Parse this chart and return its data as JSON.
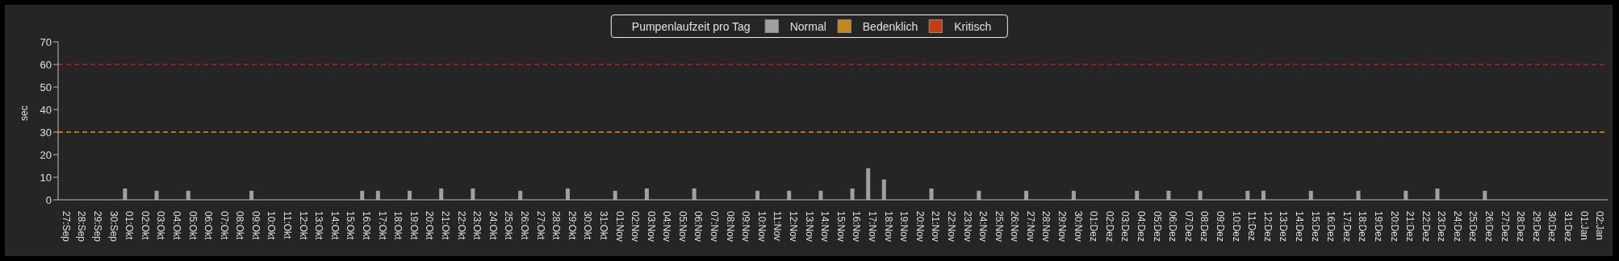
{
  "chart_data": {
    "type": "bar",
    "legend_title": "Pumpenlaufzeit pro Tag",
    "ylabel": "sec",
    "categories": [
      "27:Sep",
      "28:Sep",
      "29:Sep",
      "30:Sep",
      "01:Okt",
      "02:Okt",
      "03:Okt",
      "04:Okt",
      "05:Okt",
      "06:Okt",
      "07:Okt",
      "08:Okt",
      "09:Okt",
      "10:Okt",
      "11:Okt",
      "12:Okt",
      "13:Okt",
      "14:Okt",
      "15:Okt",
      "16:Okt",
      "17:Okt",
      "18:Okt",
      "19:Okt",
      "20:Okt",
      "21:Okt",
      "22:Okt",
      "23:Okt",
      "24:Okt",
      "25:Okt",
      "26:Okt",
      "27:Okt",
      "28:Okt",
      "29:Okt",
      "30:Okt",
      "31:Okt",
      "01:Nov",
      "02:Nov",
      "03:Nov",
      "04:Nov",
      "05:Nov",
      "06:Nov",
      "07:Nov",
      "08:Nov",
      "09:Nov",
      "10:Nov",
      "11:Nov",
      "12:Nov",
      "13:Nov",
      "14:Nov",
      "15:Nov",
      "16:Nov",
      "17:Nov",
      "18:Nov",
      "19:Nov",
      "20:Nov",
      "21:Nov",
      "22:Nov",
      "23:Nov",
      "24:Nov",
      "25:Nov",
      "26:Nov",
      "27:Nov",
      "28:Nov",
      "29:Nov",
      "30:Nov",
      "01:Dez",
      "02:Dez",
      "03:Dez",
      "04:Dez",
      "05:Dez",
      "06:Dez",
      "07:Dez",
      "08:Dez",
      "09:Dez",
      "10:Dez",
      "11:Dez",
      "12:Dez",
      "13:Dez",
      "14:Dez",
      "15:Dez",
      "16:Dez",
      "17:Dez",
      "18:Dez",
      "19:Dez",
      "20:Dez",
      "21:Dez",
      "22:Dez",
      "23:Dez",
      "24:Dez",
      "25:Dez",
      "26:Dez",
      "27:Dez",
      "28:Dez",
      "29:Dez",
      "30:Dez",
      "31:Dez",
      "01:Jan",
      "02:Jan"
    ],
    "series": [
      {
        "name": "Normal",
        "color": "#a0a0a0",
        "values": [
          0,
          0,
          0,
          0,
          5,
          0,
          4,
          0,
          4,
          0,
          0,
          0,
          4,
          0,
          0,
          0,
          0,
          0,
          0,
          4,
          4,
          0,
          4,
          0,
          5,
          0,
          5,
          0,
          0,
          4,
          0,
          0,
          5,
          0,
          0,
          4,
          0,
          5,
          0,
          0,
          5,
          0,
          0,
          0,
          4,
          0,
          4,
          0,
          4,
          0,
          5,
          14,
          9,
          0,
          0,
          5,
          0,
          0,
          4,
          0,
          0,
          4,
          0,
          0,
          4,
          0,
          0,
          0,
          4,
          0,
          4,
          0,
          4,
          0,
          0,
          4,
          4,
          0,
          0,
          4,
          0,
          0,
          4,
          0,
          0,
          4,
          0,
          5,
          0,
          0,
          4,
          0,
          0,
          0,
          0,
          0,
          0,
          0
        ]
      },
      {
        "name": "Bedenklich",
        "color": "#c8861a",
        "values": [
          null,
          null,
          null,
          null,
          null,
          null,
          null,
          null,
          null,
          null,
          null,
          null,
          null,
          null,
          null,
          null,
          null,
          null,
          null,
          null,
          null,
          null,
          null,
          null,
          null,
          null,
          null,
          null,
          null,
          null,
          null,
          null,
          null,
          null,
          null,
          null,
          null,
          null,
          null,
          null,
          null,
          null,
          null,
          null,
          null,
          null,
          null,
          null,
          null,
          null,
          null,
          null,
          null,
          null,
          null,
          null,
          null,
          null,
          null,
          null,
          null,
          null,
          null,
          null,
          null,
          null,
          null,
          null,
          null,
          null,
          null,
          null,
          null,
          null,
          null,
          null,
          null,
          null,
          null,
          null,
          null,
          null,
          null,
          null,
          null,
          null,
          null,
          null,
          null,
          null,
          null,
          null,
          null,
          null,
          null,
          null,
          null,
          null
        ]
      },
      {
        "name": "Kritisch",
        "color": "#c83c14",
        "values": [
          null,
          null,
          null,
          null,
          null,
          null,
          null,
          null,
          null,
          null,
          null,
          null,
          null,
          null,
          null,
          null,
          null,
          null,
          null,
          null,
          null,
          null,
          null,
          null,
          null,
          null,
          null,
          null,
          null,
          null,
          null,
          null,
          null,
          null,
          null,
          null,
          null,
          null,
          null,
          null,
          null,
          null,
          null,
          null,
          null,
          null,
          null,
          null,
          null,
          null,
          null,
          null,
          null,
          null,
          null,
          null,
          null,
          null,
          null,
          null,
          null,
          null,
          null,
          null,
          null,
          null,
          null,
          null,
          null,
          null,
          null,
          null,
          null,
          null,
          null,
          null,
          null,
          null,
          null,
          null,
          null,
          null,
          null,
          null,
          null,
          null,
          null,
          null,
          null,
          null,
          null,
          null,
          null,
          null,
          null,
          null,
          null,
          null
        ]
      }
    ],
    "ylim": [
      0,
      70
    ],
    "yticks": [
      0,
      10,
      20,
      30,
      40,
      50,
      60,
      70
    ],
    "grid": false,
    "legend": "top",
    "ref_lines": [
      {
        "axis": "y",
        "value": 60,
        "color": "#d01818",
        "line_style": "dashed"
      },
      {
        "axis": "y",
        "value": 30,
        "color": "#f08c00",
        "line_style": "dashed"
      }
    ]
  }
}
